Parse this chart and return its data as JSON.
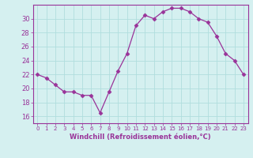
{
  "x": [
    0,
    1,
    2,
    3,
    4,
    5,
    6,
    7,
    8,
    9,
    10,
    11,
    12,
    13,
    14,
    15,
    16,
    17,
    18,
    19,
    20,
    21,
    22,
    23
  ],
  "y": [
    22,
    21.5,
    20.5,
    19.5,
    19.5,
    19,
    19,
    16.5,
    19.5,
    22.5,
    25,
    29,
    30.5,
    30,
    31,
    31.5,
    31.5,
    31,
    30,
    29.5,
    27.5,
    25,
    24,
    22
  ],
  "line_color": "#993399",
  "marker": "D",
  "marker_size": 2.5,
  "bg_color": "#d5f0f0",
  "grid_color": "#b0dede",
  "xlabel": "Windchill (Refroidissement éolien,°C)",
  "xlabel_color": "#993399",
  "tick_color": "#993399",
  "ylim": [
    15,
    32
  ],
  "yticks": [
    16,
    18,
    20,
    22,
    24,
    26,
    28,
    30
  ],
  "xlim": [
    -0.5,
    23.5
  ],
  "xticks": [
    0,
    1,
    2,
    3,
    4,
    5,
    6,
    7,
    8,
    9,
    10,
    11,
    12,
    13,
    14,
    15,
    16,
    17,
    18,
    19,
    20,
    21,
    22,
    23
  ]
}
